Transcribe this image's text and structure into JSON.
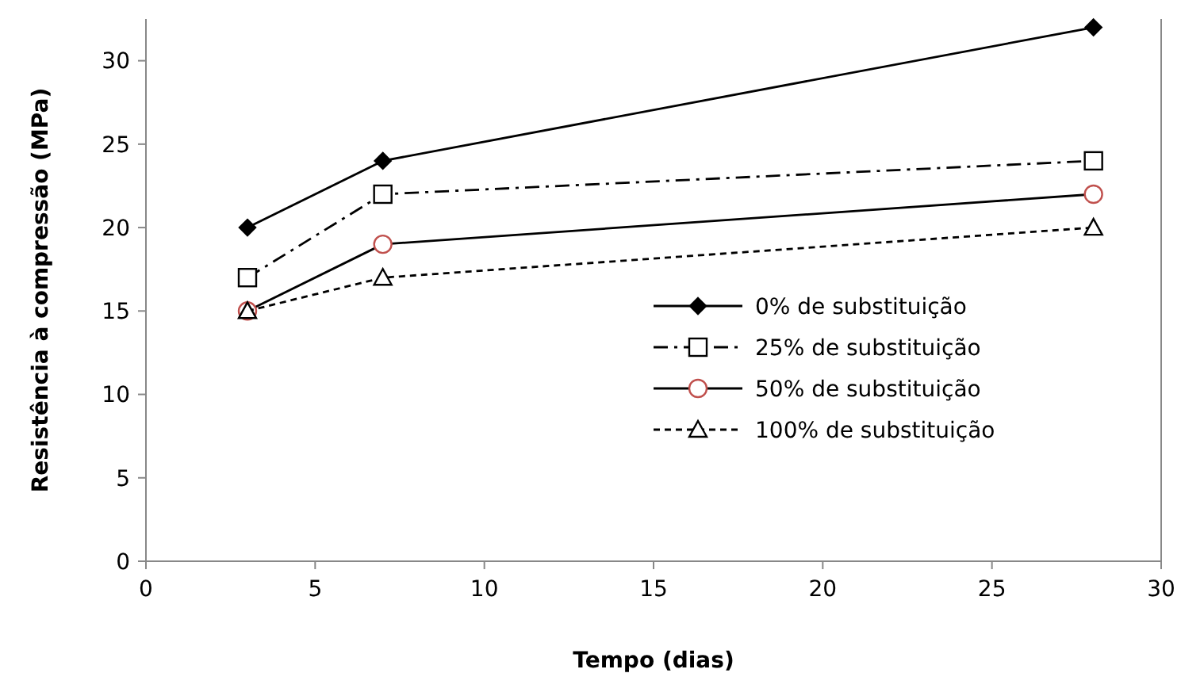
{
  "chart_data": {
    "type": "line",
    "xlabel": "Tempo (dias)",
    "ylabel": "Resistência à compressão (MPa)",
    "x": [
      3,
      7,
      28
    ],
    "series": [
      {
        "name": "0% de substituição",
        "color": "#000000",
        "values": [
          20,
          24,
          32
        ],
        "marker": "diamond",
        "line_style": "solid"
      },
      {
        "name": "25% de substituição",
        "color": "#000000",
        "values": [
          17,
          22,
          24
        ],
        "marker": "square",
        "line_style": "dashdot"
      },
      {
        "name": "50% de substituição",
        "color": "#c0504d",
        "values": [
          15,
          19,
          22
        ],
        "marker": "circle",
        "line_style": "solid"
      },
      {
        "name": "100% de substituição",
        "color": "#000000",
        "values": [
          15,
          17,
          20
        ],
        "marker": "triangle",
        "line_style": "dashed"
      }
    ],
    "xlim": [
      0,
      30
    ],
    "xticks": [
      0,
      5,
      10,
      15,
      20,
      25,
      30
    ],
    "ylim": [
      0,
      32.5
    ],
    "yticks": [
      0,
      5,
      10,
      15,
      20,
      25,
      30
    ],
    "grid": false,
    "legend": "bottom right"
  }
}
